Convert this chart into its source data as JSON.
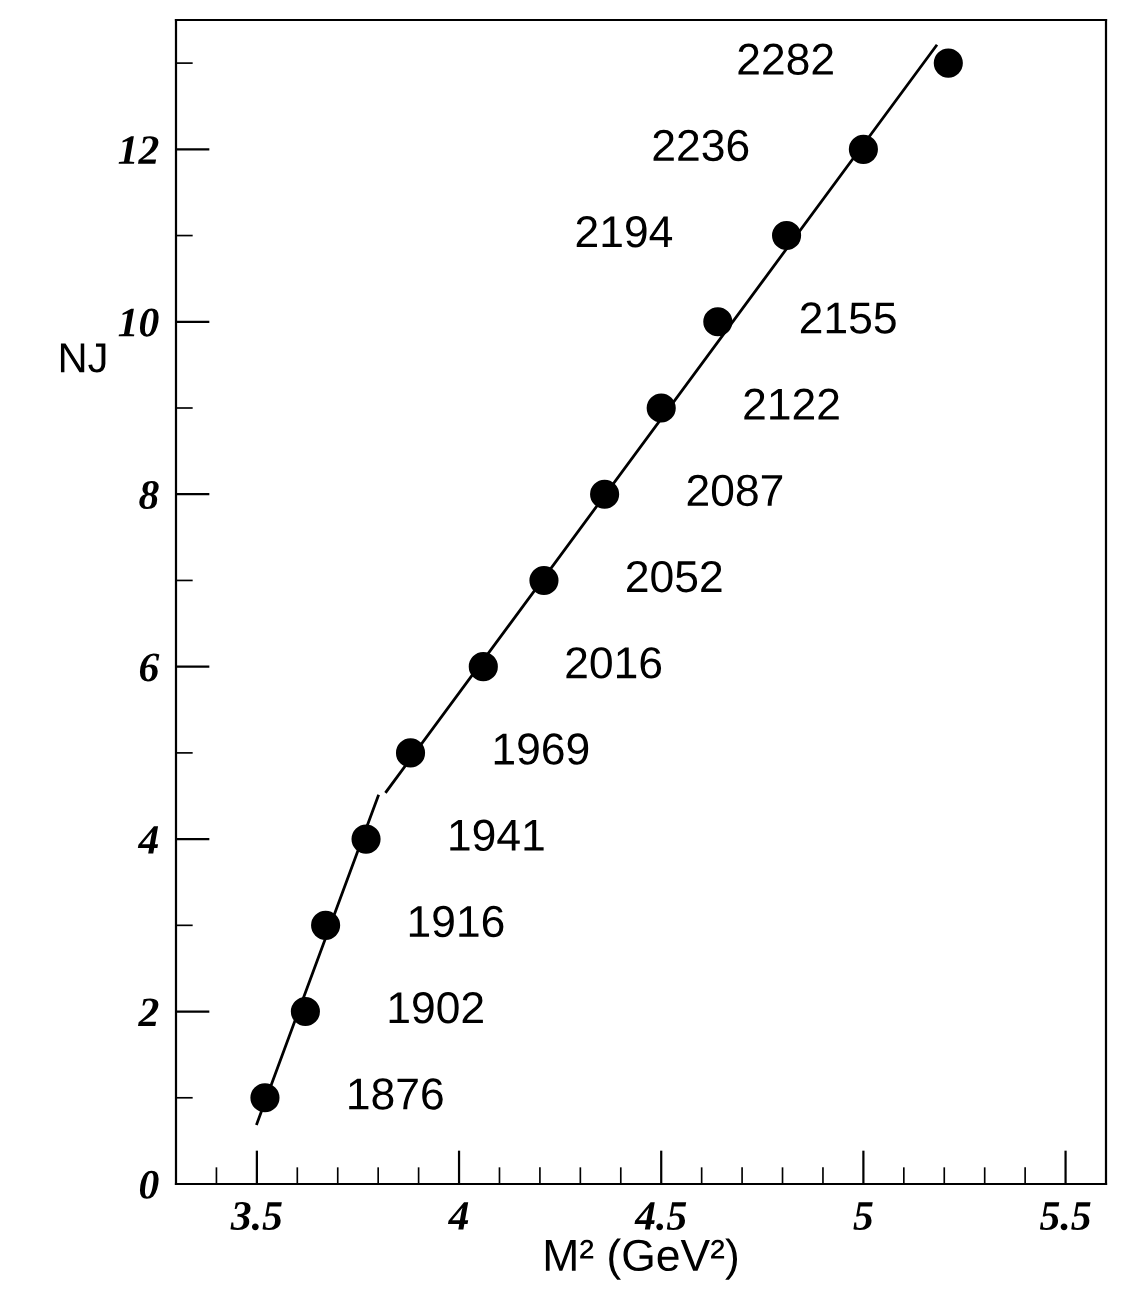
{
  "chart_data": {
    "type": "scatter",
    "xlabel": "M² (GeV²)",
    "ylabel": "NJ",
    "xlim": [
      3.3,
      5.6
    ],
    "ylim": [
      0,
      13.5
    ],
    "xticks": [
      3.5,
      4,
      4.5,
      5,
      5.5
    ],
    "yticks": [
      0,
      2,
      4,
      6,
      8,
      10,
      12
    ],
    "grid": false,
    "legend": false,
    "marker": "circle",
    "series": [
      {
        "color": "#000000",
        "x": [
          3.52,
          3.62,
          3.67,
          3.77,
          3.88,
          4.06,
          4.21,
          4.36,
          4.5,
          4.64,
          4.81,
          5.0,
          5.21
        ],
        "values": [
          1,
          2,
          3,
          4,
          5,
          6,
          7,
          8,
          9,
          10,
          11,
          12,
          13
        ]
      },
      {
        "type": "line",
        "color": "#000000",
        "line_style": "solid",
        "marker": "none",
        "x": [
          3.5,
          3.8
        ],
        "values": [
          0.7,
          4.5
        ]
      },
      {
        "type": "line",
        "color": "#000000",
        "line_style": "solid",
        "marker": "none",
        "x": [
          3.82,
          5.18
        ],
        "values": [
          4.55,
          13.2
        ]
      }
    ],
    "annotations": [
      {
        "text": "1876",
        "x": 3.52,
        "y": 1
      },
      {
        "text": "1902",
        "x": 3.62,
        "y": 2
      },
      {
        "text": "1916",
        "x": 3.67,
        "y": 3
      },
      {
        "text": "1941",
        "x": 3.77,
        "y": 4
      },
      {
        "text": "1969",
        "x": 3.88,
        "y": 5
      },
      {
        "text": "2016",
        "x": 4.06,
        "y": 6
      },
      {
        "text": "2052",
        "x": 4.21,
        "y": 7
      },
      {
        "text": "2087",
        "x": 4.36,
        "y": 8
      },
      {
        "text": "2122",
        "x": 4.5,
        "y": 9
      },
      {
        "text": "2155",
        "x": 4.64,
        "y": 10
      },
      {
        "text": "2194",
        "x": 4.81,
        "y": 11
      },
      {
        "text": "2236",
        "x": 5.0,
        "y": 12
      },
      {
        "text": "2282",
        "x": 5.21,
        "y": 13
      }
    ]
  }
}
